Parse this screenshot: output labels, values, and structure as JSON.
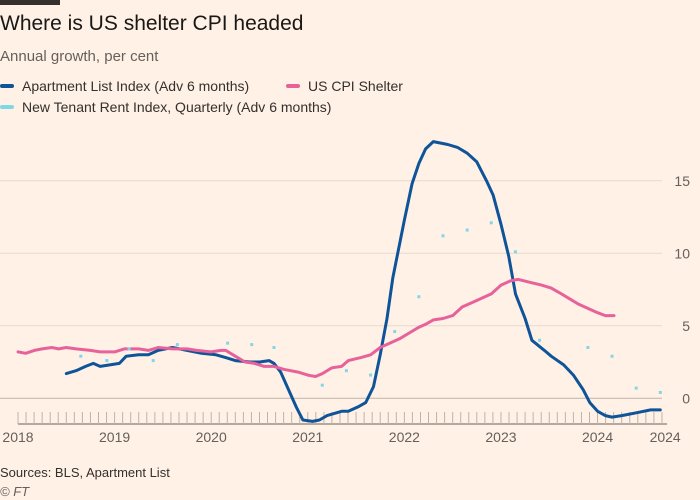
{
  "title": "Where is US shelter CPI headed",
  "subtitle": "Annual growth, per cent",
  "source": "Sources: BLS, Apartment List",
  "credit": "© FT",
  "colors": {
    "background": "#fff1e5",
    "apartment_list": "#0f5499",
    "us_cpi_shelter": "#e7629a",
    "new_tenant": "#7fd8e8",
    "grid": "#e6d9ce",
    "zero_line": "#bfb3a8",
    "tick_text": "#66605c"
  },
  "legend": [
    {
      "label": "Apartment List Index (Adv 6 months)",
      "color": "#0f5499"
    },
    {
      "label": "US CPI Shelter",
      "color": "#e7629a"
    },
    {
      "label": "New Tenant Rent Index, Quarterly (Adv 6 months)",
      "color": "#7fd8e8"
    }
  ],
  "chart_data": {
    "type": "line",
    "title": "Where is US shelter CPI headed",
    "subtitle": "Annual growth, per cent",
    "xlabel": "",
    "ylabel": "",
    "xlim": [
      2018.0,
      2024.75
    ],
    "ylim": [
      -1.5,
      18.5
    ],
    "yticks": [
      0,
      5,
      10,
      15
    ],
    "ytick_labels": [
      "0",
      "5",
      "10",
      "15"
    ],
    "yaxis_position": "right",
    "xticks": [
      2018,
      2019,
      2020,
      2021,
      2022,
      2023,
      2024,
      2024.7
    ],
    "xtick_labels": [
      "2018",
      "2019",
      "2020",
      "2021",
      "2022",
      "2023",
      "2024",
      "2024"
    ],
    "grid": "horizontal",
    "legend_position": "top-left",
    "series": [
      {
        "name": "Apartment List Index (Adv 6 months)",
        "style": "line",
        "color": "#0f5499",
        "points": [
          [
            2018.5,
            1.7
          ],
          [
            2018.6,
            1.9
          ],
          [
            2018.7,
            2.2
          ],
          [
            2018.78,
            2.4
          ],
          [
            2018.85,
            2.2
          ],
          [
            2018.95,
            2.3
          ],
          [
            2019.05,
            2.4
          ],
          [
            2019.12,
            2.9
          ],
          [
            2019.25,
            3.0
          ],
          [
            2019.35,
            3.0
          ],
          [
            2019.45,
            3.3
          ],
          [
            2019.6,
            3.5
          ],
          [
            2019.75,
            3.3
          ],
          [
            2019.9,
            3.1
          ],
          [
            2020.05,
            3.0
          ],
          [
            2020.15,
            2.8
          ],
          [
            2020.25,
            2.6
          ],
          [
            2020.4,
            2.5
          ],
          [
            2020.5,
            2.5
          ],
          [
            2020.6,
            2.6
          ],
          [
            2020.65,
            2.4
          ],
          [
            2020.72,
            1.8
          ],
          [
            2020.8,
            0.6
          ],
          [
            2020.88,
            -0.6
          ],
          [
            2020.95,
            -1.5
          ],
          [
            2021.05,
            -1.6
          ],
          [
            2021.12,
            -1.5
          ],
          [
            2021.2,
            -1.2
          ],
          [
            2021.35,
            -0.9
          ],
          [
            2021.42,
            -0.9
          ],
          [
            2021.52,
            -0.6
          ],
          [
            2021.6,
            -0.3
          ],
          [
            2021.68,
            0.8
          ],
          [
            2021.75,
            3.0
          ],
          [
            2021.82,
            5.5
          ],
          [
            2021.88,
            8.3
          ],
          [
            2021.94,
            10.3
          ],
          [
            2022.0,
            12.3
          ],
          [
            2022.08,
            14.8
          ],
          [
            2022.15,
            16.2
          ],
          [
            2022.22,
            17.2
          ],
          [
            2022.3,
            17.7
          ],
          [
            2022.45,
            17.5
          ],
          [
            2022.55,
            17.3
          ],
          [
            2022.65,
            16.9
          ],
          [
            2022.75,
            16.3
          ],
          [
            2022.85,
            15.0
          ],
          [
            2022.92,
            14.0
          ],
          [
            2023.0,
            12.0
          ],
          [
            2023.08,
            9.8
          ],
          [
            2023.15,
            7.2
          ],
          [
            2023.25,
            5.5
          ],
          [
            2023.32,
            4.0
          ],
          [
            2023.45,
            3.3
          ],
          [
            2023.52,
            2.9
          ],
          [
            2023.65,
            2.3
          ],
          [
            2023.75,
            1.6
          ],
          [
            2023.85,
            0.6
          ],
          [
            2023.92,
            -0.3
          ],
          [
            2024.0,
            -0.9
          ],
          [
            2024.08,
            -1.2
          ],
          [
            2024.15,
            -1.3
          ],
          [
            2024.25,
            -1.2
          ],
          [
            2024.4,
            -1.0
          ],
          [
            2024.55,
            -0.8
          ],
          [
            2024.65,
            -0.8
          ]
        ]
      },
      {
        "name": "US CPI Shelter",
        "style": "line",
        "color": "#e7629a",
        "points": [
          [
            2018.0,
            3.2
          ],
          [
            2018.08,
            3.1
          ],
          [
            2018.17,
            3.3
          ],
          [
            2018.25,
            3.4
          ],
          [
            2018.35,
            3.5
          ],
          [
            2018.42,
            3.4
          ],
          [
            2018.5,
            3.5
          ],
          [
            2018.6,
            3.4
          ],
          [
            2018.75,
            3.3
          ],
          [
            2018.85,
            3.2
          ],
          [
            2019.0,
            3.2
          ],
          [
            2019.1,
            3.4
          ],
          [
            2019.25,
            3.4
          ],
          [
            2019.35,
            3.3
          ],
          [
            2019.45,
            3.5
          ],
          [
            2019.6,
            3.4
          ],
          [
            2019.75,
            3.4
          ],
          [
            2019.85,
            3.3
          ],
          [
            2020.0,
            3.2
          ],
          [
            2020.1,
            3.3
          ],
          [
            2020.15,
            3.3
          ],
          [
            2020.25,
            2.9
          ],
          [
            2020.35,
            2.5
          ],
          [
            2020.45,
            2.4
          ],
          [
            2020.55,
            2.2
          ],
          [
            2020.65,
            2.2
          ],
          [
            2020.75,
            2.0
          ],
          [
            2020.9,
            1.8
          ],
          [
            2021.0,
            1.6
          ],
          [
            2021.08,
            1.5
          ],
          [
            2021.15,
            1.7
          ],
          [
            2021.25,
            2.1
          ],
          [
            2021.35,
            2.2
          ],
          [
            2021.42,
            2.6
          ],
          [
            2021.55,
            2.8
          ],
          [
            2021.65,
            3.0
          ],
          [
            2021.75,
            3.5
          ],
          [
            2021.85,
            3.8
          ],
          [
            2021.95,
            4.1
          ],
          [
            2022.05,
            4.5
          ],
          [
            2022.15,
            4.9
          ],
          [
            2022.22,
            5.1
          ],
          [
            2022.3,
            5.4
          ],
          [
            2022.4,
            5.5
          ],
          [
            2022.5,
            5.7
          ],
          [
            2022.6,
            6.3
          ],
          [
            2022.7,
            6.6
          ],
          [
            2022.8,
            6.9
          ],
          [
            2022.9,
            7.2
          ],
          [
            2023.0,
            7.8
          ],
          [
            2023.1,
            8.1
          ],
          [
            2023.18,
            8.2
          ],
          [
            2023.3,
            8.0
          ],
          [
            2023.42,
            7.8
          ],
          [
            2023.52,
            7.6
          ],
          [
            2023.6,
            7.3
          ],
          [
            2023.7,
            6.9
          ],
          [
            2023.8,
            6.5
          ],
          [
            2023.9,
            6.2
          ],
          [
            2024.0,
            5.9
          ],
          [
            2024.08,
            5.7
          ],
          [
            2024.17,
            5.7
          ]
        ]
      },
      {
        "name": "New Tenant Rent Index, Quarterly (Adv 6 months)",
        "style": "dots",
        "color": "#7fd8e8",
        "points": [
          [
            2018.65,
            2.9
          ],
          [
            2018.92,
            2.6
          ],
          [
            2019.15,
            3.4
          ],
          [
            2019.4,
            2.6
          ],
          [
            2019.65,
            3.7
          ],
          [
            2020.17,
            3.8
          ],
          [
            2020.42,
            3.7
          ],
          [
            2020.65,
            3.5
          ],
          [
            2021.15,
            0.9
          ],
          [
            2021.4,
            1.9
          ],
          [
            2021.65,
            1.6
          ],
          [
            2021.9,
            4.6
          ],
          [
            2022.15,
            7.0
          ],
          [
            2022.4,
            11.2
          ],
          [
            2022.65,
            11.6
          ],
          [
            2022.9,
            12.1
          ],
          [
            2023.15,
            10.1
          ],
          [
            2023.4,
            4.0
          ],
          [
            2023.9,
            3.5
          ],
          [
            2024.15,
            2.9
          ],
          [
            2024.4,
            0.7
          ],
          [
            2024.65,
            0.4
          ]
        ]
      }
    ]
  }
}
